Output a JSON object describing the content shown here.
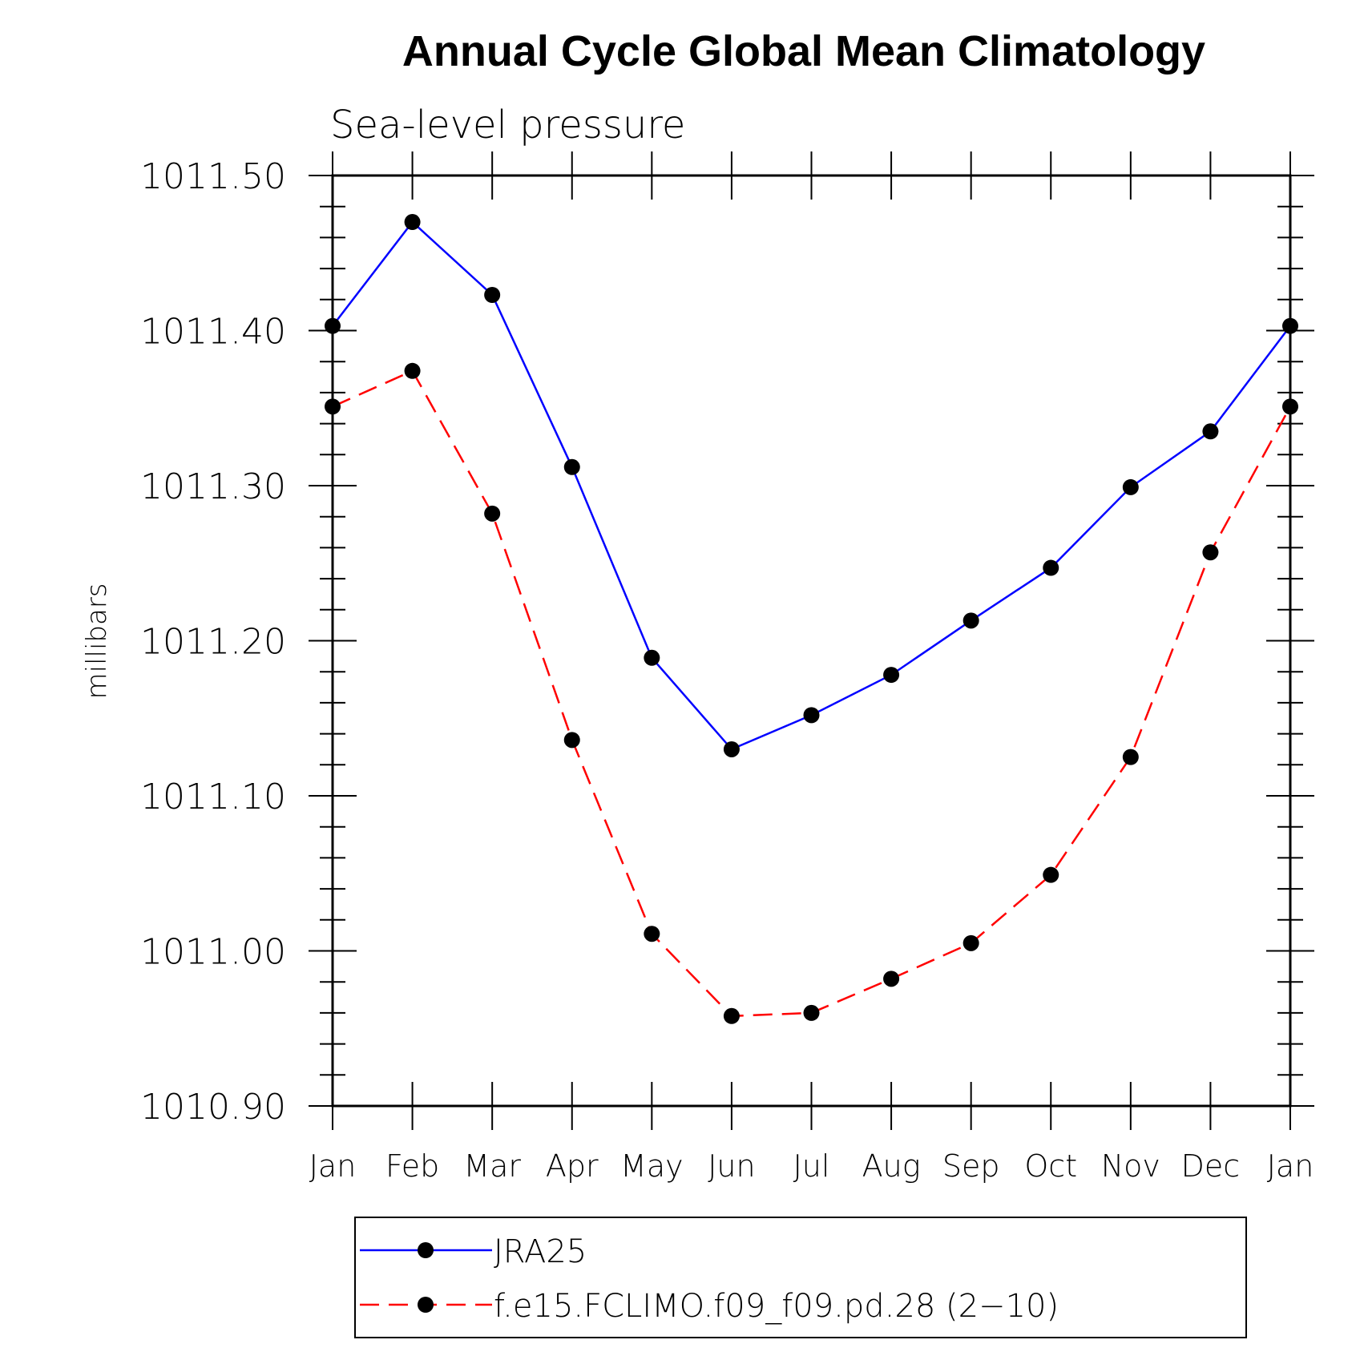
{
  "chart_data": {
    "type": "line",
    "title": "Annual Cycle Global Mean Climatology",
    "subtitle": "Sea-level pressure",
    "ylabel": "millibars",
    "xlabel": "",
    "categories": [
      "Jan",
      "Feb",
      "Mar",
      "Apr",
      "May",
      "Jun",
      "Jul",
      "Aug",
      "Sep",
      "Oct",
      "Nov",
      "Dec",
      "Jan"
    ],
    "ylim": [
      1010.9,
      1011.5
    ],
    "yticks": [
      "1010.90",
      "1011.00",
      "1011.10",
      "1011.20",
      "1011.30",
      "1011.40",
      "1011.50"
    ],
    "ytick_values": [
      1010.9,
      1011.0,
      1011.1,
      1011.2,
      1011.3,
      1011.4,
      1011.5
    ],
    "series": [
      {
        "name": "JRA25",
        "color": "#0000ff",
        "dash": "solid",
        "values": [
          1011.403,
          1011.47,
          1011.423,
          1011.312,
          1011.189,
          1011.13,
          1011.152,
          1011.178,
          1011.213,
          1011.247,
          1011.299,
          1011.335,
          1011.403
        ]
      },
      {
        "name": "f.e15.FCLIMO.f09_f09.pd.28 (2−10)",
        "color": "#ff0000",
        "dash": "dashed",
        "values": [
          1011.351,
          1011.374,
          1011.282,
          1011.136,
          1011.011,
          1010.958,
          1010.96,
          1010.982,
          1011.005,
          1011.049,
          1011.125,
          1011.257,
          1011.351
        ]
      }
    ],
    "marker_color": "#000000",
    "legend_position": "bottom"
  }
}
